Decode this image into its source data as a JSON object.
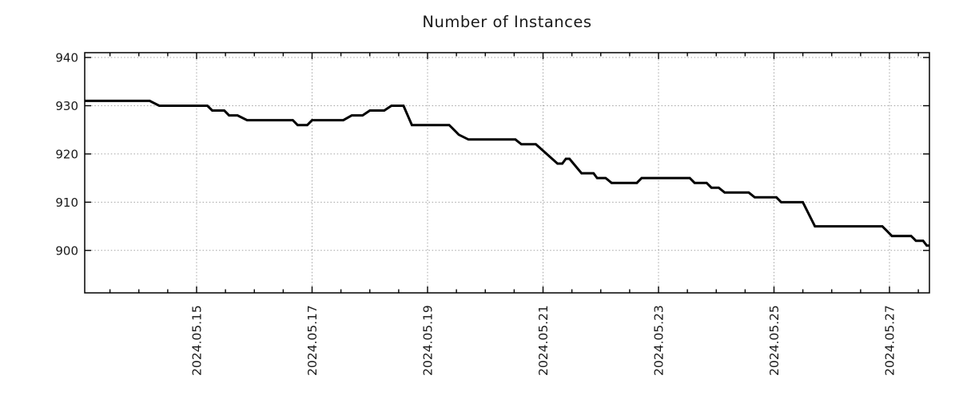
{
  "title": "Number of Instances",
  "colors": {
    "line": "#000000",
    "grid": "#a3a3a3",
    "axis": "#000000",
    "text": "#1a1a1a",
    "background": "#ffffff"
  },
  "chart_data": {
    "type": "line",
    "title": "Number of Instances",
    "xlabel": "",
    "ylabel": "",
    "legend": "none",
    "grid": "dotted",
    "x_axis": {
      "start": "2024-05-13 01:30",
      "end": "2024-05-27 16:30",
      "major_tick_labels": [
        "2024.05.15",
        "2024.05.17",
        "2024.05.19",
        "2024.05.21",
        "2024.05.23",
        "2024.05.25",
        "2024.05.27"
      ],
      "major_tick_interval_days": 2,
      "minor_tick_interval_days": 0.5,
      "label_rotation_deg": 90
    },
    "y_axis": {
      "min": 891.2,
      "max": 941.0,
      "ticks": [
        900,
        910,
        920,
        930,
        940
      ]
    },
    "series": [
      {
        "name": "Number of Instances",
        "color": "#000000",
        "line_width": 3,
        "points": [
          [
            "2024-05-13 01:30",
            931
          ],
          [
            "2024-05-14 04:30",
            931
          ],
          [
            "2024-05-14 08:30",
            930
          ],
          [
            "2024-05-15 04:30",
            930
          ],
          [
            "2024-05-15 06:30",
            929
          ],
          [
            "2024-05-15 11:30",
            929
          ],
          [
            "2024-05-15 13:30",
            928
          ],
          [
            "2024-05-15 17:00",
            928
          ],
          [
            "2024-05-15 21:00",
            927
          ],
          [
            "2024-05-16 16:00",
            927
          ],
          [
            "2024-05-16 18:00",
            926
          ],
          [
            "2024-05-16 22:00",
            926
          ],
          [
            "2024-05-17 00:00",
            927
          ],
          [
            "2024-05-17 13:00",
            927
          ],
          [
            "2024-05-17 16:30",
            928
          ],
          [
            "2024-05-17 21:00",
            928
          ],
          [
            "2024-05-18 00:00",
            929
          ],
          [
            "2024-05-18 06:00",
            929
          ],
          [
            "2024-05-18 09:00",
            930
          ],
          [
            "2024-05-18 14:00",
            930
          ],
          [
            "2024-05-18 17:30",
            926
          ],
          [
            "2024-05-19 09:00",
            926
          ],
          [
            "2024-05-19 11:00",
            925
          ],
          [
            "2024-05-19 13:00",
            924
          ],
          [
            "2024-05-19 17:00",
            923
          ],
          [
            "2024-05-20 12:30",
            923
          ],
          [
            "2024-05-20 15:00",
            922
          ],
          [
            "2024-05-20 21:00",
            922
          ],
          [
            "2024-05-21 06:00",
            918
          ],
          [
            "2024-05-21 08:00",
            918
          ],
          [
            "2024-05-21 09:30",
            919
          ],
          [
            "2024-05-21 11:00",
            919
          ],
          [
            "2024-05-21 16:00",
            916
          ],
          [
            "2024-05-21 21:00",
            916
          ],
          [
            "2024-05-21 22:30",
            915
          ],
          [
            "2024-05-22 02:00",
            915
          ],
          [
            "2024-05-22 04:30",
            914
          ],
          [
            "2024-05-22 15:00",
            914
          ],
          [
            "2024-05-22 17:00",
            915
          ],
          [
            "2024-05-23 13:00",
            915
          ],
          [
            "2024-05-23 15:00",
            914
          ],
          [
            "2024-05-23 20:00",
            914
          ],
          [
            "2024-05-23 22:00",
            913
          ],
          [
            "2024-05-24 01:00",
            913
          ],
          [
            "2024-05-24 03:30",
            912
          ],
          [
            "2024-05-24 13:30",
            912
          ],
          [
            "2024-05-24 16:00",
            911
          ],
          [
            "2024-05-25 01:00",
            911
          ],
          [
            "2024-05-25 03:00",
            910
          ],
          [
            "2024-05-25 12:00",
            910
          ],
          [
            "2024-05-25 17:00",
            905
          ],
          [
            "2024-05-26 21:00",
            905
          ],
          [
            "2024-05-26 23:00",
            904
          ],
          [
            "2024-05-27 01:00",
            903
          ],
          [
            "2024-05-27 09:00",
            903
          ],
          [
            "2024-05-27 11:00",
            902
          ],
          [
            "2024-05-27 14:00",
            902
          ],
          [
            "2024-05-27 15:30",
            901
          ],
          [
            "2024-05-27 16:30",
            901
          ]
        ]
      }
    ]
  }
}
